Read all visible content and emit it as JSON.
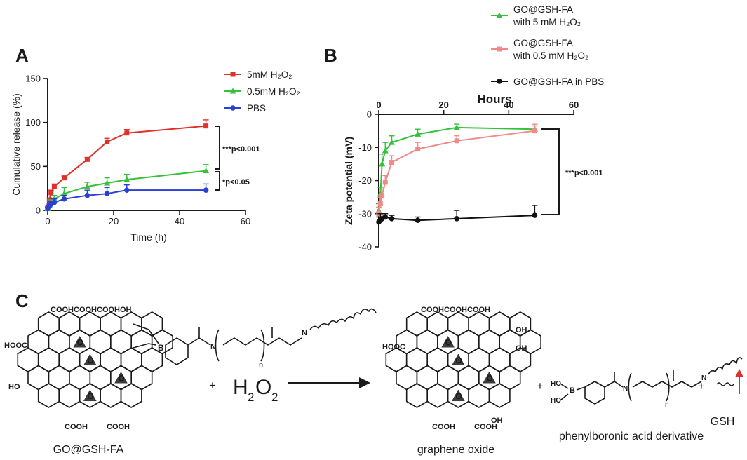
{
  "panels": {
    "a": "A",
    "b": "B",
    "c": "C"
  },
  "chart_data": [
    {
      "type": "line",
      "xlabel": "Time (h)",
      "ylabel": "Cumulative release (%)",
      "xlim": [
        0,
        60
      ],
      "ylim": [
        0,
        150
      ],
      "xticks": [
        "0",
        "20",
        "40",
        "60"
      ],
      "yticks": [
        "0",
        "50",
        "100",
        "150"
      ],
      "legend_position": "top-right",
      "x": [
        0,
        0.5,
        1,
        2,
        5,
        12,
        18,
        24,
        48
      ],
      "series": [
        {
          "name": "5mM H₂O₂",
          "color": "#e0302a",
          "marker": "square",
          "values": [
            3,
            12,
            20,
            27,
            37,
            58,
            78,
            88,
            96
          ],
          "errors": [
            1,
            2,
            3,
            3,
            2,
            2,
            4,
            4,
            7
          ]
        },
        {
          "name": "0.5mM H₂O₂",
          "color": "#35c13a",
          "marker": "triangle",
          "values": [
            2,
            6,
            9,
            13,
            19,
            27,
            31,
            35,
            45
          ],
          "errors": [
            1,
            2,
            3,
            4,
            7,
            5,
            6,
            6,
            7
          ]
        },
        {
          "name": "PBS",
          "color": "#2a3fd6",
          "marker": "circle",
          "values": [
            2,
            5,
            7,
            9,
            13,
            17,
            19,
            23,
            23
          ],
          "errors": [
            1,
            2,
            3,
            4,
            4,
            6,
            7,
            6,
            7
          ]
        }
      ],
      "annotations": [
        "***p<0.001",
        "*p<0.05"
      ]
    },
    {
      "type": "line",
      "title": "Hours",
      "ylabel": "Zeta potential (mV)",
      "xlim": [
        0,
        60
      ],
      "ylim": [
        -40,
        0
      ],
      "xticks": [
        "0",
        "20",
        "40",
        "60"
      ],
      "yticks": [
        "0",
        "-10",
        "-20",
        "-30",
        "-40"
      ],
      "x_axis_position": "top",
      "legend_position": "top",
      "x": [
        0,
        0.5,
        1,
        2,
        4,
        12,
        24,
        48
      ],
      "series": [
        {
          "name": "GO@GSH-FA with 5 mM H₂O₂",
          "color": "#35c13a",
          "marker": "triangle",
          "values": [
            -29,
            -24,
            -15,
            -11,
            -8.5,
            -6,
            -4,
            -4.5
          ],
          "errors": [
            2,
            2,
            3,
            2.5,
            2,
            1.5,
            1,
            1
          ]
        },
        {
          "name": "GO@GSH-FA with 0.5 mM H₂O₂",
          "color": "#f08a8a",
          "marker": "square",
          "values": [
            -30,
            -27,
            -24.5,
            -20.5,
            -14.5,
            -10.5,
            -8,
            -5
          ],
          "errors": [
            2,
            2,
            2,
            2,
            2,
            2,
            1.5,
            2
          ]
        },
        {
          "name": "GO@GSH-FA in PBS",
          "color": "#111111",
          "marker": "circle",
          "values": [
            -32.5,
            -32,
            -31.5,
            -31,
            -31.5,
            -32,
            -31.5,
            -30.5
          ],
          "errors": [
            1.5,
            2,
            1.5,
            1,
            1,
            1,
            2.5,
            3
          ]
        }
      ],
      "annotations": [
        "***p<0.001"
      ]
    }
  ],
  "scheme": {
    "reactant_label": "GO@GSH-FA",
    "product_labels": [
      "graphene oxide",
      "phenylboronic acid derivative",
      "GSH"
    ],
    "plus": "+",
    "reagent_base": "H",
    "reagent_sub": "2",
    "reagent_o": "O",
    "labels": {
      "cooh_top": "COOHCOOHCOOHOH",
      "cooh_top_product": "COOHCOOHCOOH",
      "hooc": "HOOC",
      "cooh": "COOH",
      "oh": "OH",
      "ho": "HO",
      "o": "O",
      "b": "B",
      "n": "n",
      "h": "H",
      "nh": "N",
      "hn": "N"
    }
  }
}
